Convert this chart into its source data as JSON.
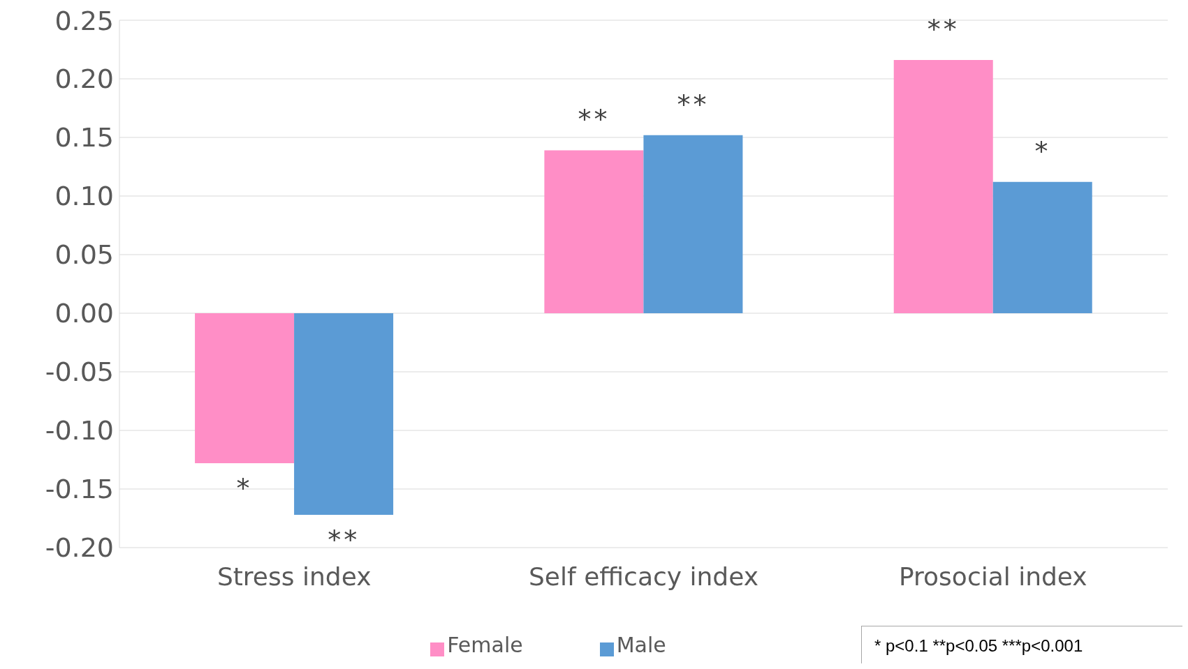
{
  "chart_data": {
    "type": "bar",
    "categories": [
      "Stress index",
      "Self efficacy index",
      "Prosocial index"
    ],
    "series": [
      {
        "name": "Female",
        "color": "#ff8ec6",
        "values": [
          -0.128,
          0.139,
          0.216
        ]
      },
      {
        "name": "Male",
        "color": "#5b9bd5",
        "values": [
          -0.172,
          0.152,
          0.112
        ]
      }
    ],
    "ylim": [
      -0.2,
      0.25
    ],
    "yticks": [
      {
        "value": -0.2,
        "label": "-0.20"
      },
      {
        "value": -0.15,
        "label": "-0.15"
      },
      {
        "value": -0.1,
        "label": "-0.10"
      },
      {
        "value": -0.05,
        "label": "-0.05"
      },
      {
        "value": 0,
        "label": "0.00"
      },
      {
        "value": 0.05,
        "label": "0.05"
      },
      {
        "value": 0.1,
        "label": "0.10"
      },
      {
        "value": 0.15,
        "label": "0.15"
      },
      {
        "value": 0.2,
        "label": "0.20"
      },
      {
        "value": 0.25,
        "label": "0.25"
      }
    ],
    "grid": "y",
    "legend": "bottom",
    "annotations": [
      {
        "text": "*",
        "x": "Stress index",
        "y": -0.128
      },
      {
        "text": "**",
        "x": "Stress index",
        "y": -0.172
      },
      {
        "text": "**",
        "x": "Self efficacy index",
        "y": 0.139
      },
      {
        "text": "**",
        "x": "Self efficacy index",
        "y": 0.152
      },
      {
        "text": "**",
        "x": "Prosocial index",
        "y": 0.216
      },
      {
        "text": "*",
        "x": "Prosocial index",
        "y": 0.112
      },
      "* p<0.1 **p<0.05 ***p<0.001"
    ]
  }
}
